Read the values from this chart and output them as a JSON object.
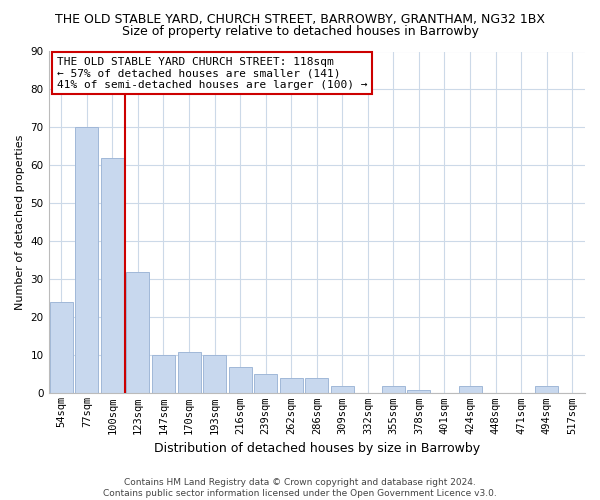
{
  "title": "THE OLD STABLE YARD, CHURCH STREET, BARROWBY, GRANTHAM, NG32 1BX",
  "subtitle": "Size of property relative to detached houses in Barrowby",
  "xlabel": "Distribution of detached houses by size in Barrowby",
  "ylabel": "Number of detached properties",
  "bar_labels": [
    "54sqm",
    "77sqm",
    "100sqm",
    "123sqm",
    "147sqm",
    "170sqm",
    "193sqm",
    "216sqm",
    "239sqm",
    "262sqm",
    "286sqm",
    "309sqm",
    "332sqm",
    "355sqm",
    "378sqm",
    "401sqm",
    "424sqm",
    "448sqm",
    "471sqm",
    "494sqm",
    "517sqm"
  ],
  "bar_values": [
    24,
    70,
    62,
    32,
    10,
    11,
    10,
    7,
    5,
    4,
    4,
    2,
    0,
    2,
    1,
    0,
    2,
    0,
    0,
    2,
    0
  ],
  "bar_color": "#c8d8ee",
  "bar_edge_color": "#a0b8d8",
  "vline_x_idx": 2,
  "vline_color": "#cc0000",
  "annotation_title": "THE OLD STABLE YARD CHURCH STREET: 118sqm",
  "annotation_line1": "← 57% of detached houses are smaller (141)",
  "annotation_line2": "41% of semi-detached houses are larger (100) →",
  "annotation_box_facecolor": "#ffffff",
  "annotation_box_edgecolor": "#cc0000",
  "ylim": [
    0,
    90
  ],
  "yticks": [
    0,
    10,
    20,
    30,
    40,
    50,
    60,
    70,
    80,
    90
  ],
  "footer_line1": "Contains HM Land Registry data © Crown copyright and database right 2024.",
  "footer_line2": "Contains public sector information licensed under the Open Government Licence v3.0.",
  "bg_color": "#ffffff",
  "grid_color": "#ccd9e8",
  "title_fontsize": 9,
  "subtitle_fontsize": 9,
  "ylabel_fontsize": 8,
  "xlabel_fontsize": 9,
  "tick_fontsize": 7.5,
  "annotation_fontsize": 8,
  "footer_fontsize": 6.5
}
